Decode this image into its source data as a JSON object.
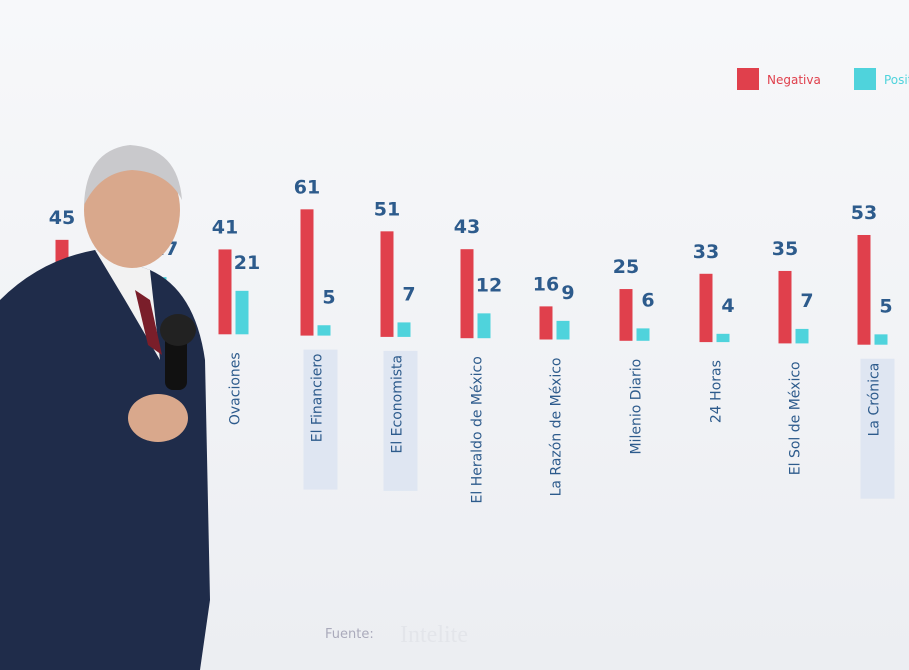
{
  "chart_data": {
    "type": "bar",
    "categories": [
      null,
      "Ovaciones",
      "El Financiero",
      "El Economista",
      "El Heraldo de México",
      "La Razón de México",
      "Milenio Diario",
      "24 Horas",
      "El Sol de México",
      "La Crónica"
    ],
    "series": [
      {
        "name": "Negativa",
        "color": "#e0404c",
        "values": [
          45,
          41,
          61,
          51,
          43,
          16,
          25,
          33,
          35,
          53
        ]
      },
      {
        "name": "Positiva",
        "color": "#4fd3dc",
        "values": [
          27,
          21,
          5,
          7,
          12,
          9,
          6,
          4,
          7,
          5
        ]
      }
    ],
    "value_labels_shown": [
      true,
      true
    ],
    "source_label": "Fuente:",
    "source": "Intelite"
  }
}
